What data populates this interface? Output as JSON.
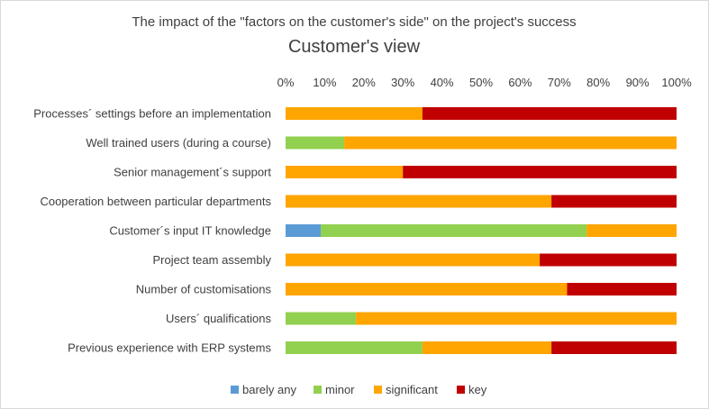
{
  "chart_data": {
    "type": "bar",
    "orientation": "horizontal",
    "stacked": "percent",
    "title": "The impact of the \"factors on the customer's side\" on the project's success",
    "subtitle": "Customer's view",
    "xlim": [
      0,
      100
    ],
    "x_ticks": [
      "0%",
      "10%",
      "20%",
      "30%",
      "40%",
      "50%",
      "60%",
      "70%",
      "80%",
      "90%",
      "100%"
    ],
    "x_axis_position": "top",
    "legend_position": "bottom",
    "grid": false,
    "categories": [
      "Processes´ settings before an implementation",
      "Well trained users (during a course)",
      "Senior management´s support",
      "Cooperation between particular departments",
      "Customer´s input IT knowledge",
      "Project team assembly",
      "Number of customisations",
      "Users´ qualifications",
      "Previous experience with ERP systems"
    ],
    "series": [
      {
        "name": "barely any",
        "color": "#5b9bd5",
        "values": [
          0,
          0,
          0,
          0,
          9,
          0,
          0,
          0,
          0
        ]
      },
      {
        "name": "minor",
        "color": "#92d050",
        "values": [
          0,
          15,
          0,
          0,
          68,
          0,
          0,
          18,
          35
        ]
      },
      {
        "name": "significant",
        "color": "#ffa500",
        "values": [
          35,
          85,
          30,
          68,
          23,
          65,
          72,
          82,
          33
        ]
      },
      {
        "name": "key",
        "color": "#c00000",
        "values": [
          65,
          0,
          70,
          32,
          0,
          35,
          28,
          0,
          32
        ]
      }
    ]
  }
}
